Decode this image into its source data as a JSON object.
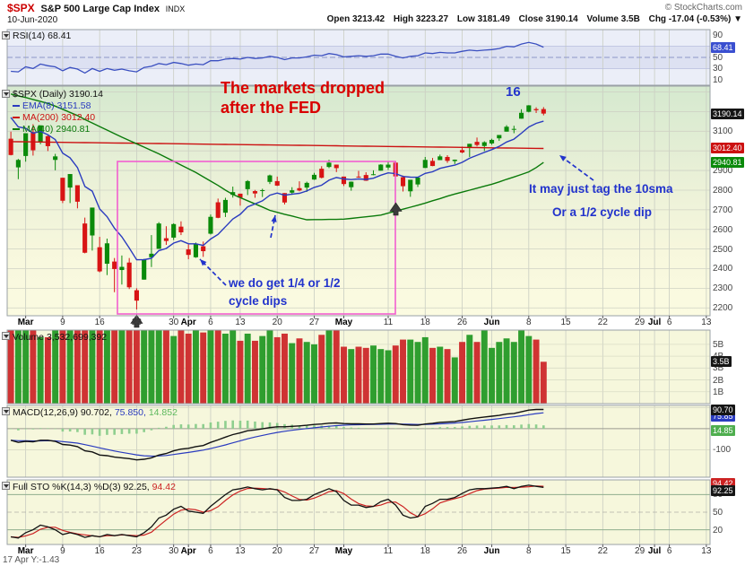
{
  "header": {
    "symbol": "$SPX",
    "title": "S&P 500 Large Cap Index",
    "exchange": "INDX",
    "date": "10-Jun-2020",
    "copyright": "© StockCharts.com",
    "quote": {
      "open_label": "Open",
      "open_value": "3213.42",
      "high_label": "High",
      "high_value": "3223.27",
      "low_label": "Low",
      "low_value": "3181.49",
      "close_label": "Close",
      "close_value": "3190.14",
      "volume_label": "Volume",
      "volume_value": "3.5B",
      "chg_label": "Chg",
      "chg_value": "-17.04 (-0.53%)",
      "chg_arrow": "▼"
    }
  },
  "rsi_panel": {
    "name": "RSI(14)",
    "value": "68.41"
  },
  "price_panel": {
    "name": "$SPX (Daily)",
    "value": "3190.14",
    "ema_label": "EMA(8)",
    "ema_value": "3151.58",
    "ma200_label": "MA(200)",
    "ma200_value": "3012.40",
    "ma40_label": "MA(40)",
    "ma40_value": "2940.81"
  },
  "volume_panel": {
    "name": "Volume",
    "value": "3,532,699,392"
  },
  "macd_panel": {
    "name": "MACD(12,26,9)",
    "v1": "90.702,",
    "v2": "75.850,",
    "v3": "14.852"
  },
  "sto_panel": {
    "name": "Full STO %K(14,3) %D(3)",
    "v1": "92.25,",
    "v2": "94.42"
  },
  "annotations": {
    "note1_line1": "The markets dropped",
    "note1_line2": "after the FED",
    "cycle_count": "16",
    "note2_line1": "It may just tag the 10sma",
    "note2_line2": "Or a 1/2 cycle dip",
    "note3_line1": "we do get 1/4 or 1/2",
    "note3_line2": "cycle dips"
  },
  "footer": {
    "status": "17 Apr Y:-1.43"
  },
  "chart_data": {
    "type": "candlestick-multi-panel",
    "symbol": "$SPX",
    "timeframe": "Daily",
    "total_slots": 95,
    "x_ticks": [
      {
        "slot": 2,
        "label": "Mar",
        "month": true
      },
      {
        "slot": 7,
        "label": "9"
      },
      {
        "slot": 12,
        "label": "16"
      },
      {
        "slot": 17,
        "label": "23"
      },
      {
        "slot": 22,
        "label": "30"
      },
      {
        "slot": 24,
        "label": "Apr",
        "month": true
      },
      {
        "slot": 27,
        "label": "6"
      },
      {
        "slot": 31,
        "label": "13"
      },
      {
        "slot": 36,
        "label": "20"
      },
      {
        "slot": 41,
        "label": "27"
      },
      {
        "slot": 45,
        "label": "May",
        "month": true
      },
      {
        "slot": 51,
        "label": "11"
      },
      {
        "slot": 56,
        "label": "18"
      },
      {
        "slot": 61,
        "label": "26"
      },
      {
        "slot": 65,
        "label": "Jun",
        "month": true
      },
      {
        "slot": 70,
        "label": "8"
      },
      {
        "slot": 75,
        "label": "15"
      },
      {
        "slot": 80,
        "label": "22"
      },
      {
        "slot": 85,
        "label": "29"
      },
      {
        "slot": 87,
        "label": "Jul",
        "month": true
      },
      {
        "slot": 89,
        "label": "6"
      },
      {
        "slot": 94,
        "label": "13"
      }
    ],
    "price": {
      "ylim": [
        2160,
        3330
      ],
      "gridlines": [
        2200,
        2300,
        2400,
        2500,
        2600,
        2700,
        2800,
        2900,
        3000,
        3100,
        3200,
        3300
      ],
      "axis_labels": [
        3100,
        2900,
        2800,
        2700,
        2600,
        2500,
        2400,
        2300,
        2200
      ],
      "last_close_box": "3190.14",
      "ma200_box": "3012.40",
      "ma40_box": "2940.81",
      "ema_period": 8,
      "ema_seed": 3225,
      "ma200_start": 3047,
      "ma200_end": 3012.4,
      "ma40": [
        3290,
        3280,
        3272,
        3262,
        3252,
        3242,
        3228,
        3212,
        3196,
        3180,
        3160,
        3142,
        3124,
        3106,
        3088,
        3070,
        3053,
        3036,
        3019,
        3002,
        2985,
        2966,
        2947,
        2928,
        2909,
        2890,
        2868,
        2846,
        2824,
        2800,
        2778,
        2762,
        2746,
        2730,
        2714,
        2697,
        2687,
        2677,
        2668,
        2658,
        2649,
        2650,
        2650,
        2651,
        2651,
        2652,
        2656,
        2660,
        2664,
        2668,
        2673,
        2683,
        2693,
        2703,
        2713,
        2723,
        2734,
        2746,
        2757,
        2769,
        2780,
        2790,
        2800,
        2810,
        2820,
        2830,
        2842,
        2855,
        2867,
        2880,
        2893,
        2915,
        2941
      ],
      "candles_ohlc": [
        [
          3062,
          3098,
          2977,
          2979
        ],
        [
          2916,
          2959,
          2856,
          2954
        ],
        [
          2974,
          3090,
          2945,
          3090
        ],
        [
          3096,
          3136,
          2976,
          3003
        ],
        [
          3045,
          3130,
          3034,
          3130
        ],
        [
          3075,
          3083,
          2999,
          3024
        ],
        [
          2954,
          2985,
          2901,
          2972
        ],
        [
          2863,
          2863,
          2734,
          2746
        ],
        [
          2813,
          2882,
          2734,
          2882
        ],
        [
          2825,
          2825,
          2707,
          2741
        ],
        [
          2630,
          2660,
          2478,
          2481
        ],
        [
          2569,
          2711,
          2492,
          2711
        ],
        [
          2509,
          2562,
          2381,
          2386
        ],
        [
          2425,
          2553,
          2367,
          2529
        ],
        [
          2436,
          2454,
          2280,
          2398
        ],
        [
          2393,
          2467,
          2319,
          2409
        ],
        [
          2431,
          2454,
          2296,
          2305
        ],
        [
          2290,
          2300,
          2192,
          2237
        ],
        [
          2344,
          2450,
          2344,
          2447
        ],
        [
          2458,
          2571,
          2408,
          2476
        ],
        [
          2501,
          2637,
          2501,
          2630
        ],
        [
          2555,
          2616,
          2521,
          2541
        ],
        [
          2558,
          2631,
          2546,
          2627
        ],
        [
          2614,
          2641,
          2571,
          2585
        ],
        [
          2498,
          2523,
          2448,
          2470
        ],
        [
          2458,
          2533,
          2455,
          2527
        ],
        [
          2514,
          2538,
          2460,
          2489
        ],
        [
          2578,
          2676,
          2574,
          2664
        ],
        [
          2738,
          2757,
          2657,
          2659
        ],
        [
          2685,
          2761,
          2663,
          2750
        ],
        [
          2776,
          2818,
          2762,
          2790
        ],
        [
          2782,
          2782,
          2721,
          2762
        ],
        [
          2805,
          2851,
          2775,
          2846
        ],
        [
          2795,
          2801,
          2761,
          2783
        ],
        [
          2799,
          2807,
          2765,
          2800
        ],
        [
          2842,
          2879,
          2831,
          2875
        ],
        [
          2846,
          2869,
          2821,
          2823
        ],
        [
          2785,
          2785,
          2727,
          2737
        ],
        [
          2787,
          2815,
          2776,
          2799
        ],
        [
          2810,
          2845,
          2794,
          2798
        ],
        [
          2813,
          2843,
          2791,
          2837
        ],
        [
          2854,
          2888,
          2852,
          2878
        ],
        [
          2909,
          2922,
          2860,
          2863
        ],
        [
          2918,
          2955,
          2912,
          2940
        ],
        [
          2930,
          2930,
          2892,
          2912
        ],
        [
          2869,
          2869,
          2821,
          2831
        ],
        [
          2815,
          2844,
          2797,
          2843
        ],
        [
          2869,
          2898,
          2863,
          2868
        ],
        [
          2877,
          2891,
          2847,
          2848
        ],
        [
          2878,
          2901,
          2876,
          2881
        ],
        [
          2899,
          2932,
          2899,
          2930
        ],
        [
          2915,
          2945,
          2903,
          2930
        ],
        [
          2940,
          2946,
          2869,
          2870
        ],
        [
          2866,
          2874,
          2793,
          2820
        ],
        [
          2794,
          2852,
          2766,
          2853
        ],
        [
          2829,
          2865,
          2816,
          2864
        ],
        [
          2913,
          2969,
          2913,
          2954
        ],
        [
          2949,
          2964,
          2922,
          2923
        ],
        [
          2953,
          2981,
          2953,
          2972
        ],
        [
          2969,
          2978,
          2939,
          2949
        ],
        [
          2948,
          2956,
          2933,
          2955
        ],
        [
          3004,
          3022,
          2988,
          2992
        ],
        [
          3015,
          3036,
          2969,
          3036
        ],
        [
          3046,
          3068,
          3023,
          3030
        ],
        [
          3025,
          3049,
          2999,
          3044
        ],
        [
          3038,
          3062,
          3031,
          3056
        ],
        [
          3064,
          3081,
          3051,
          3081
        ],
        [
          3098,
          3131,
          3098,
          3123
        ],
        [
          3112,
          3128,
          3090,
          3112
        ],
        [
          3164,
          3212,
          3164,
          3194
        ],
        [
          3199,
          3233,
          3196,
          3232
        ],
        [
          3213,
          3222,
          3193,
          3207
        ],
        [
          3213,
          3223,
          3181,
          3190
        ]
      ]
    },
    "rsi": {
      "values": [
        25,
        24,
        33,
        30,
        38,
        35,
        33,
        26,
        32,
        29,
        22,
        30,
        25,
        30,
        27,
        29,
        26,
        24,
        32,
        34,
        39,
        37,
        41,
        39,
        36,
        38,
        37,
        44,
        44,
        47,
        48,
        47,
        50,
        48,
        49,
        52,
        50,
        46,
        49,
        49,
        51,
        54,
        53,
        57,
        55,
        51,
        52,
        53,
        52,
        53,
        56,
        56,
        52,
        49,
        52,
        53,
        58,
        57,
        59,
        58,
        58,
        61,
        63,
        62,
        63,
        64,
        66,
        70,
        69,
        74,
        77,
        74,
        68.41
      ],
      "axis_labels": [
        90,
        70,
        50,
        30,
        10
      ],
      "band": [
        30,
        70
      ],
      "mid": 50,
      "last_box": "68.41"
    },
    "volume": {
      "values_billions": [
        7.6,
        8.6,
        6.4,
        6.6,
        5.6,
        5.6,
        6.6,
        8.0,
        7.4,
        7.0,
        8.8,
        8.1,
        7.8,
        8.4,
        8.7,
        7.9,
        9.0,
        7.9,
        7.5,
        8.3,
        7.1,
        6.2,
        5.7,
        6.5,
        5.9,
        6.2,
        6.0,
        6.3,
        7.0,
        5.9,
        7.1,
        5.3,
        5.9,
        5.3,
        5.7,
        6.3,
        5.6,
        5.9,
        5.1,
        5.5,
        5.2,
        5.0,
        5.8,
        6.2,
        6.2,
        4.8,
        4.6,
        4.8,
        4.7,
        4.9,
        4.6,
        4.5,
        4.9,
        5.4,
        5.4,
        5.2,
        5.6,
        4.7,
        4.8,
        4.6,
        3.9,
        5.2,
        5.8,
        5.2,
        6.5,
        4.7,
        5.2,
        5.5,
        5.2,
        6.6,
        5.7,
        5.4,
        3.53
      ],
      "axis_labels": [
        "5B",
        "4B",
        "3B",
        "2B",
        "1B"
      ],
      "axis_values": [
        5,
        4,
        3,
        2,
        1
      ],
      "ymax": 6.2,
      "last_box": "3.5B"
    },
    "macd": {
      "values": [
        -55,
        -65,
        -60,
        -62,
        -55,
        -55,
        -60,
        -75,
        -78,
        -85,
        -105,
        -110,
        -125,
        -128,
        -135,
        -138,
        -142,
        -148,
        -145,
        -138,
        -125,
        -118,
        -105,
        -97,
        -93,
        -85,
        -80,
        -65,
        -53,
        -40,
        -28,
        -20,
        -10,
        -6,
        -1,
        5,
        9,
        9,
        11,
        13,
        16,
        20,
        22,
        26,
        27,
        24,
        23,
        23,
        22,
        22,
        24,
        26,
        24,
        19,
        17,
        16,
        22,
        25,
        30,
        32,
        34,
        40,
        46,
        51,
        55,
        59,
        63,
        69,
        72,
        80,
        88,
        91,
        90.7
      ],
      "signal_period": 9,
      "ylim": [
        -230,
        110
      ],
      "axis_labels": [
        0,
        -100
      ],
      "boxes": {
        "macd": "90.70",
        "signal": "75.85",
        "hist": "14.85"
      }
    },
    "sto": {
      "k_values": [
        8,
        6,
        15,
        20,
        28,
        25,
        20,
        12,
        15,
        12,
        7,
        10,
        8,
        12,
        10,
        12,
        10,
        8,
        15,
        25,
        40,
        45,
        55,
        60,
        52,
        50,
        48,
        60,
        70,
        80,
        88,
        90,
        93,
        90,
        88,
        90,
        88,
        75,
        70,
        70,
        72,
        80,
        85,
        90,
        85,
        70,
        62,
        62,
        58,
        60,
        68,
        72,
        62,
        45,
        40,
        42,
        60,
        65,
        72,
        72,
        75,
        82,
        88,
        90,
        90,
        91,
        92,
        94,
        90,
        94,
        96,
        94,
        92.25
      ],
      "d_period": 3,
      "axis_labels": [
        80,
        50,
        20
      ],
      "bands": [
        80,
        50,
        20
      ],
      "boxes": {
        "k": "92.25",
        "d": "94.42"
      }
    }
  }
}
